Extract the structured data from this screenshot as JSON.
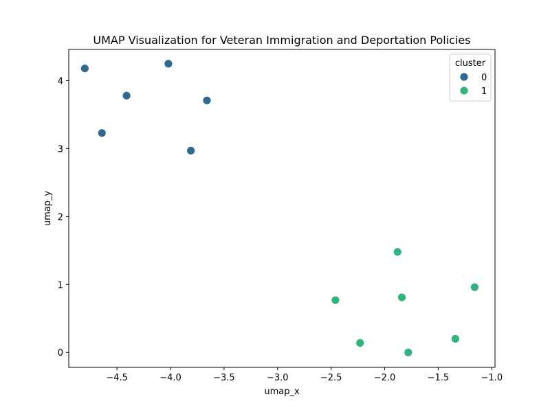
{
  "chart_data": {
    "type": "scatter",
    "title": "UMAP Visualization for Veteran Immigration and Deportation Policies",
    "xlabel": "umap_x",
    "ylabel": "umap_y",
    "xlim": [
      -4.95,
      -0.97
    ],
    "ylim": [
      -0.22,
      4.46
    ],
    "x_ticks": [
      -4.5,
      -4.0,
      -3.5,
      -3.0,
      -2.5,
      -2.0,
      -1.5,
      -1.0
    ],
    "x_tick_labels": [
      "−4.5",
      "−4.0",
      "−3.5",
      "−3.0",
      "−2.5",
      "−2.0",
      "−1.5",
      "−1.0"
    ],
    "y_ticks": [
      0,
      1,
      2,
      3,
      4
    ],
    "y_tick_labels": [
      "0",
      "1",
      "2",
      "3",
      "4"
    ],
    "grid": false,
    "legend": {
      "title": "cluster",
      "placement": "top-right",
      "entries": [
        "0",
        "1"
      ]
    },
    "series": [
      {
        "name": "0",
        "color": "#2e6a8e",
        "points": [
          {
            "x": -4.8,
            "y": 4.18
          },
          {
            "x": -4.02,
            "y": 4.25
          },
          {
            "x": -4.41,
            "y": 3.78
          },
          {
            "x": -3.66,
            "y": 3.71
          },
          {
            "x": -4.64,
            "y": 3.23
          },
          {
            "x": -3.81,
            "y": 2.97
          }
        ]
      },
      {
        "name": "1",
        "color": "#2fb47c",
        "points": [
          {
            "x": -1.88,
            "y": 1.48
          },
          {
            "x": -1.16,
            "y": 0.96
          },
          {
            "x": -1.84,
            "y": 0.81
          },
          {
            "x": -2.46,
            "y": 0.77
          },
          {
            "x": -2.23,
            "y": 0.14
          },
          {
            "x": -1.34,
            "y": 0.2
          },
          {
            "x": -1.78,
            "y": 0.0
          }
        ]
      }
    ]
  }
}
